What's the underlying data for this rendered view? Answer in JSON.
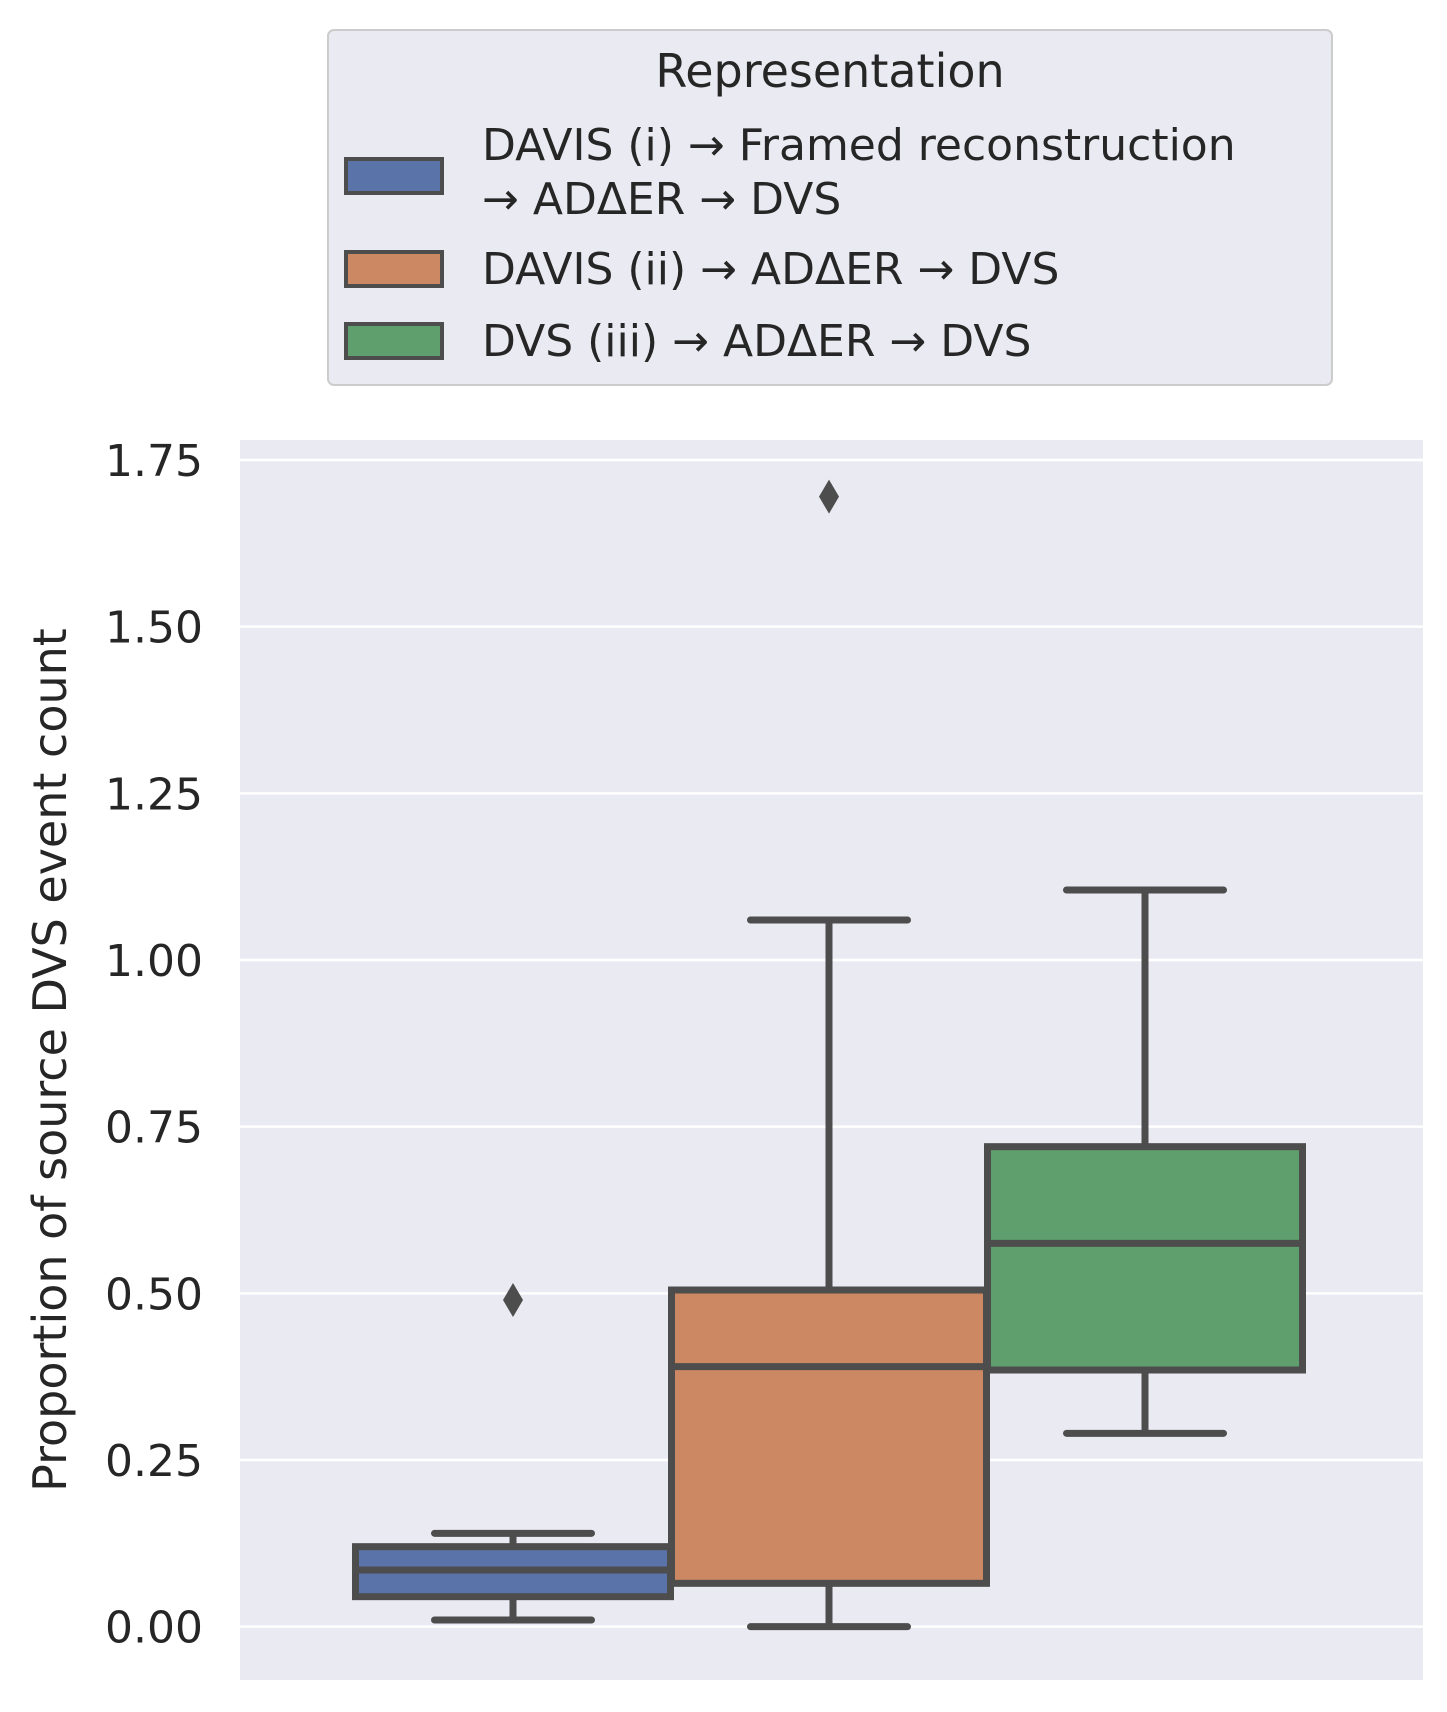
{
  "chart_data": {
    "type": "box",
    "title": "",
    "xlabel": "",
    "ylabel": "Proportion of source DVS event count",
    "ylim": [
      -0.08,
      1.78
    ],
    "yticks": [
      0.0,
      0.25,
      0.5,
      0.75,
      1.0,
      1.25,
      1.5,
      1.75
    ],
    "ytick_labels": [
      "0.00",
      "0.25",
      "0.50",
      "0.75",
      "1.00",
      "1.25",
      "1.50",
      "1.75"
    ],
    "grid": true,
    "legend": {
      "title": "Representation",
      "placement": "top-center, above plot",
      "entries": [
        {
          "line1": "DAVIS (i) → Framed reconstruction",
          "line2": "→ ADΔER → DVS",
          "color": "#5a73a8"
        },
        {
          "line1": "DAVIS (ii) → ADΔER → DVS",
          "line2": "",
          "color": "#cc8863"
        },
        {
          "line1": "DVS (iii) → ADΔER → DVS",
          "line2": "",
          "color": "#5f9f6e"
        }
      ]
    },
    "series": [
      {
        "name": "DAVIS (i) → Framed reconstruction → ADΔER → DVS",
        "color": "#5a73a8",
        "whisker_low": 0.01,
        "q1": 0.045,
        "median": 0.085,
        "q3": 0.12,
        "whisker_high": 0.14,
        "outliers": [
          0.49
        ]
      },
      {
        "name": "DAVIS (ii) → ADΔER → DVS",
        "color": "#cc8863",
        "whisker_low": 0.0,
        "q1": 0.065,
        "median": 0.39,
        "q3": 0.505,
        "whisker_high": 1.06,
        "outliers": [
          1.695
        ]
      },
      {
        "name": "DVS (iii) → ADΔER → DVS",
        "color": "#5f9f6e",
        "whisker_low": 0.29,
        "q1": 0.385,
        "median": 0.575,
        "q3": 0.72,
        "whisker_high": 1.105,
        "outliers": []
      }
    ]
  }
}
